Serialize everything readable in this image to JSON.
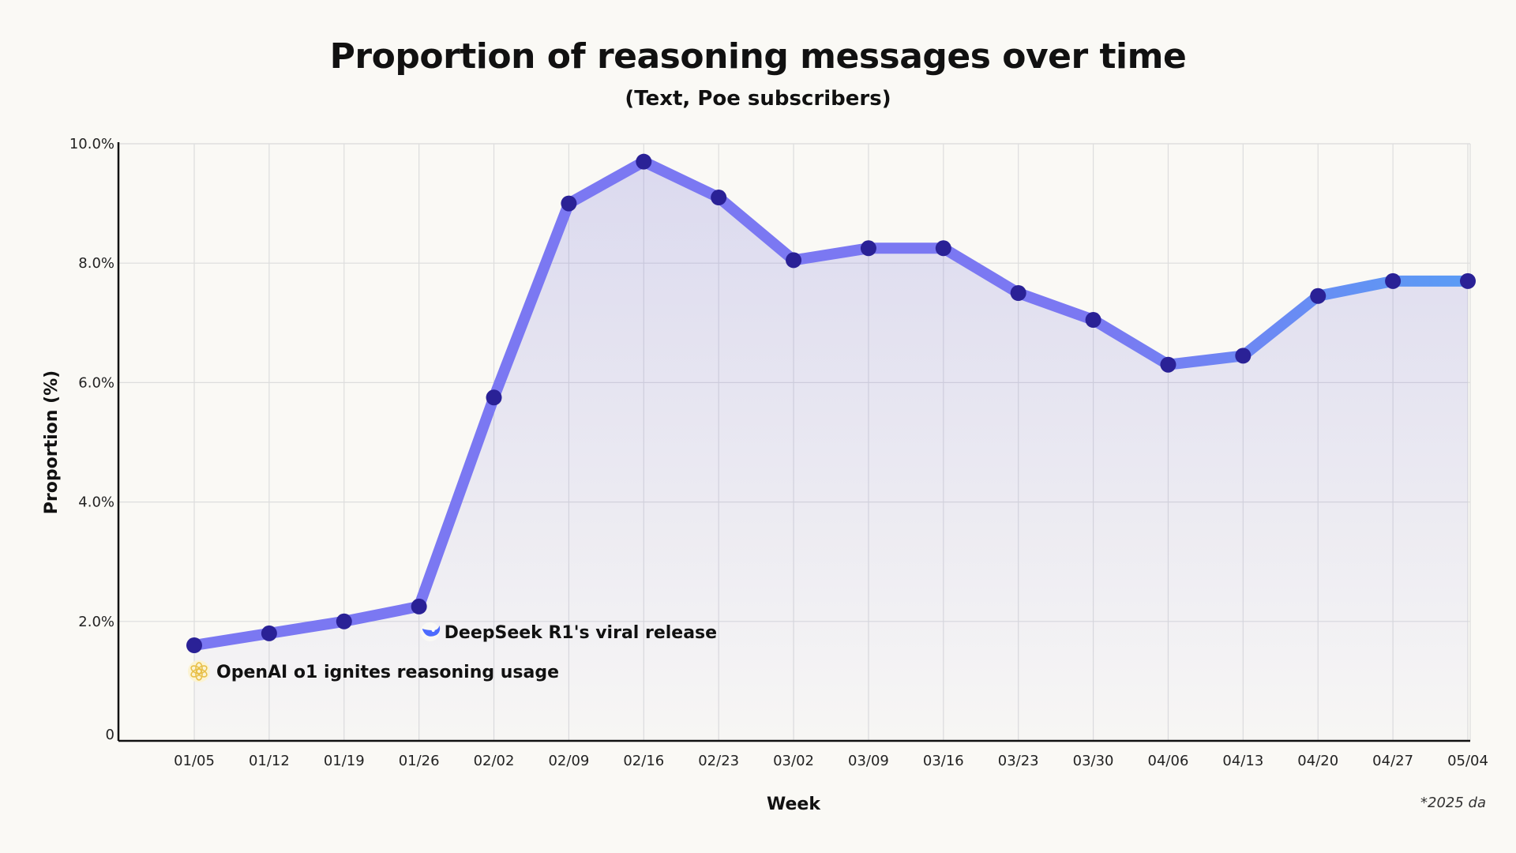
{
  "title": "Proportion of reasoning messages over time",
  "subtitle": "(Text, Poe subscribers)",
  "footnote": "*2025 da",
  "colors": {
    "background": "#faf9f5",
    "line_start": "#7b78f2",
    "line_end": "#5a9cf5",
    "marker": "#2a2196",
    "area": "#6e6ad8",
    "grid": "#dddddd"
  },
  "chart_data": {
    "type": "line",
    "xlabel": "Week",
    "ylabel": "Proportion (%)",
    "ylim": [
      0,
      10
    ],
    "yticks": [
      {
        "value": 0,
        "label": "0"
      },
      {
        "value": 2,
        "label": "2.0%"
      },
      {
        "value": 4,
        "label": "4.0%"
      },
      {
        "value": 6,
        "label": "6.0%"
      },
      {
        "value": 8,
        "label": "8.0%"
      },
      {
        "value": 10,
        "label": "10.0%"
      }
    ],
    "grid": true,
    "categories": [
      "01/05",
      "01/12",
      "01/19",
      "01/26",
      "02/02",
      "02/09",
      "02/16",
      "02/23",
      "03/02",
      "03/09",
      "03/16",
      "03/23",
      "03/30",
      "04/06",
      "04/13",
      "04/20",
      "04/27",
      "05/04"
    ],
    "values": [
      1.6,
      1.8,
      2.0,
      2.25,
      5.75,
      9.0,
      9.7,
      9.1,
      8.05,
      8.25,
      8.25,
      7.5,
      7.05,
      6.3,
      6.45,
      7.45,
      7.7,
      7.7
    ],
    "annotations": [
      {
        "text": "DeepSeek R1's viral release",
        "category": "01/26",
        "icon": "deepseek-whale-icon"
      },
      {
        "text": "OpenAI o1 ignites reasoning usage",
        "category": "01/05",
        "icon": "openai-logo-icon"
      }
    ]
  }
}
